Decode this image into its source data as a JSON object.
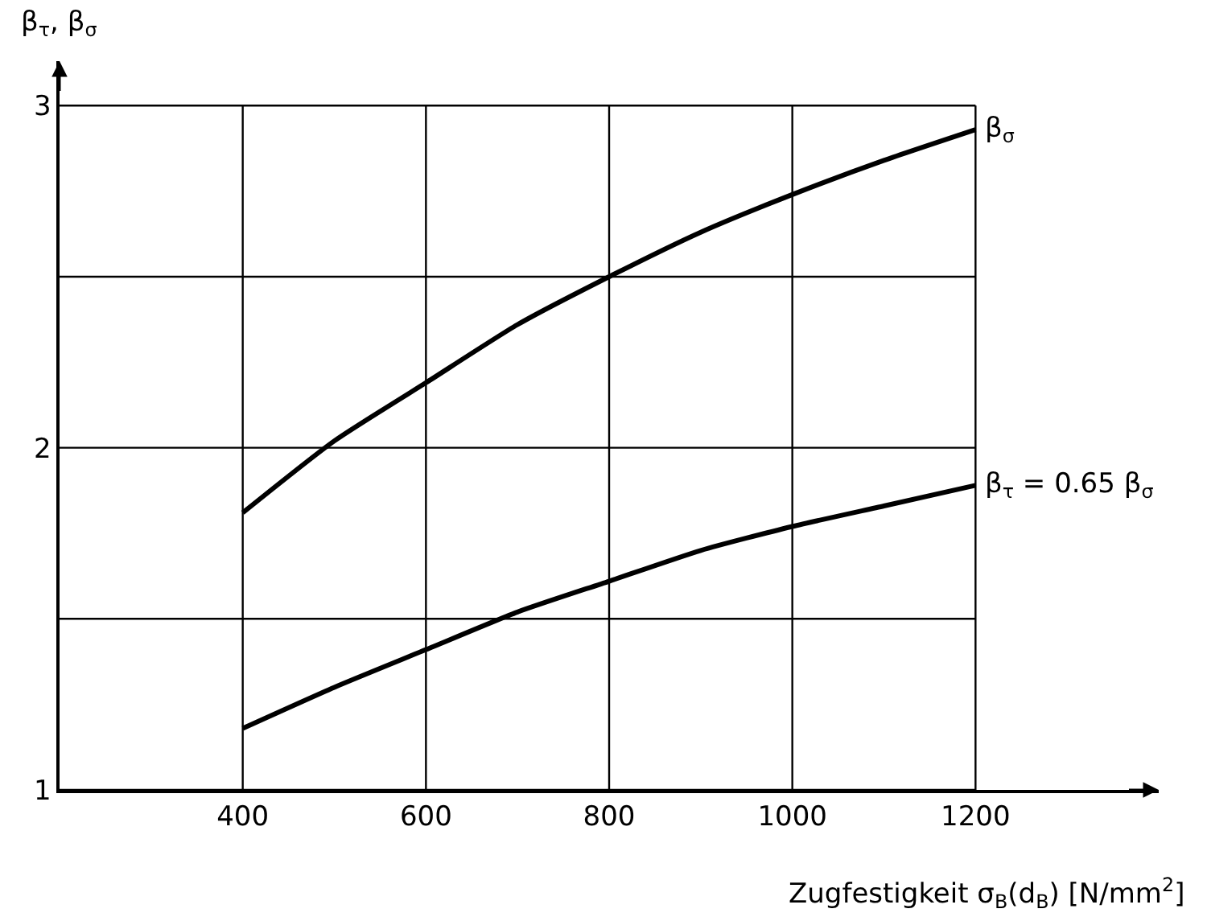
{
  "chart_data": {
    "type": "line",
    "xlabel": "Zugfestigkeit σ$_{B}$(d$_{B}$) [N/mm$^{2}$]",
    "ylabel": "β$_{τ}$, β$_{σ}$",
    "x": [
      400,
      500,
      600,
      700,
      800,
      900,
      1000,
      1100,
      1200
    ],
    "series": [
      {
        "name": "β$_{σ}$",
        "color": "#000000",
        "values": [
          1.81,
          2.02,
          2.19,
          2.36,
          2.5,
          2.63,
          2.74,
          2.84,
          2.93
        ]
      },
      {
        "name": "β$_{τ}$ = 0.65 β$_{σ}$",
        "color": "#000000",
        "values": [
          1.18,
          1.3,
          1.41,
          1.52,
          1.61,
          1.7,
          1.77,
          1.83,
          1.89
        ]
      }
    ],
    "xlim": [
      200,
      1400
    ],
    "ylim": [
      1,
      3.13
    ],
    "xticks": [
      400,
      600,
      800,
      1000,
      1200
    ],
    "yticks": [
      1,
      {
        "value": 1.5,
        "label": null
      },
      2,
      {
        "value": 2.5,
        "label": null
      },
      3
    ],
    "grid": true,
    "legend": false,
    "marker": "none",
    "line_style": "solid"
  }
}
